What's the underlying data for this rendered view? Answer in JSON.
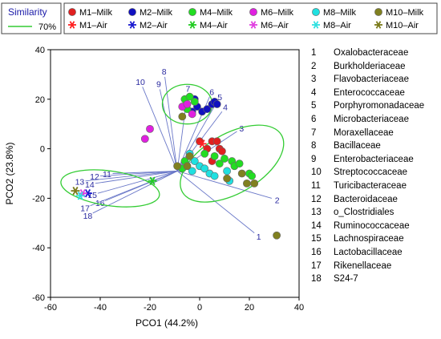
{
  "chart_data": {
    "type": "scatter",
    "xlabel": "PCO1 (44.2%)",
    "ylabel": "PCO2 (23.8%)",
    "xlim": [
      -60,
      40
    ],
    "ylim": [
      -60,
      40
    ],
    "xticks": [
      -60,
      -40,
      -20,
      0,
      20,
      40
    ],
    "yticks": [
      -60,
      -40,
      -20,
      0,
      20,
      40
    ],
    "grid": false,
    "similarity_legend": {
      "title": "Similarity",
      "entry": "70%",
      "color": "#33cc33"
    },
    "legend_position": "top",
    "series": [
      {
        "name": "M1–Milk",
        "marker": "circle",
        "color": "#e02020",
        "points": [
          [
            0,
            3
          ],
          [
            5,
            3
          ],
          [
            7,
            3
          ],
          [
            8,
            0
          ],
          [
            3,
            0
          ],
          [
            9,
            -1
          ],
          [
            5,
            -5
          ]
        ]
      },
      {
        "name": "M1–Air",
        "marker": "asterisk",
        "color": "#ff2020",
        "points": [
          [
            1,
            2
          ]
        ]
      },
      {
        "name": "M2–Milk",
        "marker": "circle",
        "color": "#1010c0",
        "points": [
          [
            -6,
            17
          ],
          [
            -3,
            15
          ],
          [
            -1,
            17
          ],
          [
            1,
            15
          ],
          [
            3,
            16
          ],
          [
            5,
            18
          ],
          [
            6,
            19
          ],
          [
            7,
            18
          ],
          [
            -2,
            20
          ]
        ]
      },
      {
        "name": "M2–Air",
        "marker": "asterisk",
        "color": "#1a1ad0",
        "points": [
          [
            -45,
            -18
          ]
        ]
      },
      {
        "name": "M4–Milk",
        "marker": "circle",
        "color": "#22dd22",
        "points": [
          [
            -6,
            20
          ],
          [
            -4,
            21
          ],
          [
            -2,
            19
          ],
          [
            -5,
            16
          ],
          [
            2,
            -2
          ],
          [
            6,
            -3
          ],
          [
            8,
            -6
          ],
          [
            10,
            -4
          ],
          [
            13,
            -5
          ],
          [
            14,
            -7
          ],
          [
            16,
            -6
          ],
          [
            20,
            -10
          ],
          [
            21,
            -11
          ],
          [
            -6,
            -5
          ],
          [
            -7,
            -8
          ]
        ]
      },
      {
        "name": "M4–Air",
        "marker": "asterisk",
        "color": "#22cc22",
        "points": [
          [
            -19,
            -13
          ]
        ]
      },
      {
        "name": "M6–Milk",
        "marker": "circle",
        "color": "#e020e0",
        "points": [
          [
            -20,
            8
          ],
          [
            -22,
            4
          ],
          [
            -7,
            17
          ],
          [
            -5,
            18
          ],
          [
            -3,
            14
          ]
        ]
      },
      {
        "name": "M6–Air",
        "marker": "asterisk",
        "color": "#e040e0",
        "points": [
          [
            -47,
            -18
          ]
        ]
      },
      {
        "name": "M8–Milk",
        "marker": "circle",
        "color": "#20e0e0",
        "points": [
          [
            -4,
            -2
          ],
          [
            -2,
            -5
          ],
          [
            0,
            -7
          ],
          [
            2,
            -8
          ],
          [
            4,
            -10
          ],
          [
            6,
            -11
          ],
          [
            11,
            -9
          ],
          [
            12,
            -13
          ],
          [
            -3,
            -9
          ]
        ]
      },
      {
        "name": "M8–Air",
        "marker": "asterisk",
        "color": "#30e0e0",
        "points": [
          [
            -48,
            -19
          ]
        ]
      },
      {
        "name": "M10–Milk",
        "marker": "circle",
        "color": "#808020",
        "points": [
          [
            -7,
            13
          ],
          [
            -5,
            -7
          ],
          [
            -9,
            -7
          ],
          [
            -4,
            -3
          ],
          [
            11,
            -12
          ],
          [
            17,
            -10
          ],
          [
            19,
            -14
          ],
          [
            22,
            -14
          ],
          [
            31,
            -35
          ]
        ]
      },
      {
        "name": "M10–Air",
        "marker": "asterisk",
        "color": "#7a7a1a",
        "points": [
          [
            -50,
            -17
          ]
        ]
      }
    ],
    "vectors": [
      {
        "id": "1",
        "x": 22,
        "y": -34
      },
      {
        "id": "2",
        "x": 29,
        "y": -20
      },
      {
        "id": "3",
        "x": 15,
        "y": 7
      },
      {
        "id": "4",
        "x": 9,
        "y": 15
      },
      {
        "id": "5",
        "x": 7,
        "y": 19
      },
      {
        "id": "6",
        "x": 4,
        "y": 21
      },
      {
        "id": "7",
        "x": -5,
        "y": 22
      },
      {
        "id": "8",
        "x": -14,
        "y": 29
      },
      {
        "id": "9",
        "x": -16,
        "y": 24
      },
      {
        "id": "10",
        "x": -23,
        "y": 25
      },
      {
        "id": "11",
        "x": -35,
        "y": -10
      },
      {
        "id": "12",
        "x": -40,
        "y": -11
      },
      {
        "id": "13",
        "x": -46,
        "y": -13
      },
      {
        "id": "14",
        "x": -42,
        "y": -14
      },
      {
        "id": "15",
        "x": -41,
        "y": -18
      },
      {
        "id": "16",
        "x": -38,
        "y": -21
      },
      {
        "id": "17",
        "x": -44,
        "y": -23
      },
      {
        "id": "18",
        "x": -43,
        "y": -26
      }
    ],
    "ellipses": [
      {
        "cx": -5,
        "cy": 18,
        "rx": 10,
        "ry": 8
      },
      {
        "cx": 13,
        "cy": -6,
        "rx": 23,
        "ry": 12,
        "angle": -30
      },
      {
        "cx": -36,
        "cy": -16,
        "rx": 20,
        "ry": 7,
        "angle": 8
      }
    ],
    "taxa": [
      {
        "n": "1",
        "name": "Oxalobacteraceae"
      },
      {
        "n": "2",
        "name": "Burkholderiaceae"
      },
      {
        "n": "3",
        "name": "Flavobacteriaceae"
      },
      {
        "n": "4",
        "name": "Enterococcaceae"
      },
      {
        "n": "5",
        "name": "Porphyromonadaceae"
      },
      {
        "n": "6",
        "name": "Microbacteriaceae"
      },
      {
        "n": "7",
        "name": "Moraxellaceae"
      },
      {
        "n": "8",
        "name": "Bacillaceae"
      },
      {
        "n": "9",
        "name": "Enterobacteriaceae"
      },
      {
        "n": "10",
        "name": "Streptococcaceae"
      },
      {
        "n": "11",
        "name": "Turicibacteraceae"
      },
      {
        "n": "12",
        "name": "Bacteroidaceae"
      },
      {
        "n": "13",
        "name": "o_Clostridiales"
      },
      {
        "n": "14",
        "name": "Ruminococcaceae"
      },
      {
        "n": "15",
        "name": "Lachnospiraceae"
      },
      {
        "n": "16",
        "name": "Lactobacillaceae"
      },
      {
        "n": "17",
        "name": "Rikenellaceae"
      },
      {
        "n": "18",
        "name": "S24-7"
      }
    ]
  }
}
